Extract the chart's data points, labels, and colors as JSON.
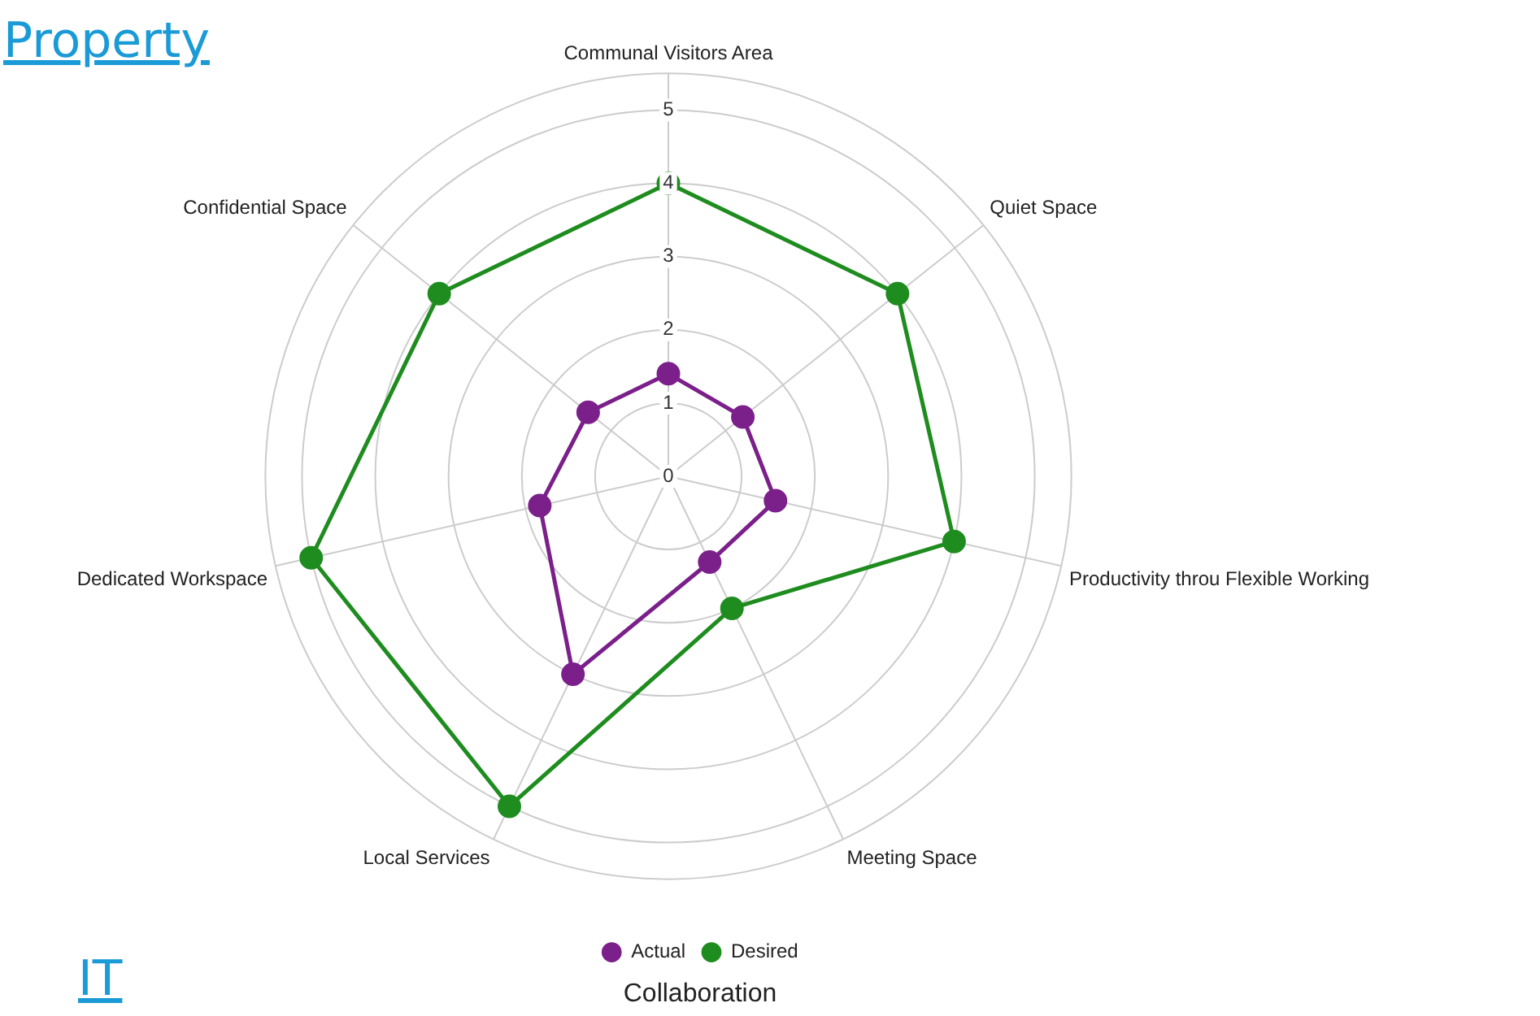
{
  "chart_data": {
    "type": "radar",
    "title": "Collaboration",
    "annotations": [
      "Property",
      "IT"
    ],
    "categories": [
      "Communal Visitors Area",
      "Quiet Space",
      "Productivity throu Flexible Working",
      "Meeting Space",
      "Local Services",
      "Dedicated Workspace",
      "Confidential Space"
    ],
    "series": [
      {
        "name": "Actual",
        "color": "#7b1f8a",
        "values": [
          1.4,
          1.3,
          1.5,
          1.3,
          3,
          1.8,
          1.4
        ]
      },
      {
        "name": "Desired",
        "color": "#1e8c1e",
        "values": [
          4,
          4,
          4,
          2,
          5,
          5,
          4
        ]
      }
    ],
    "ylim": [
      0,
      5.5
    ],
    "yticks": [
      0,
      1,
      2,
      3,
      4,
      5
    ],
    "grid": true,
    "legend": "bottom",
    "marker": "circle",
    "line_style": "solid"
  }
}
